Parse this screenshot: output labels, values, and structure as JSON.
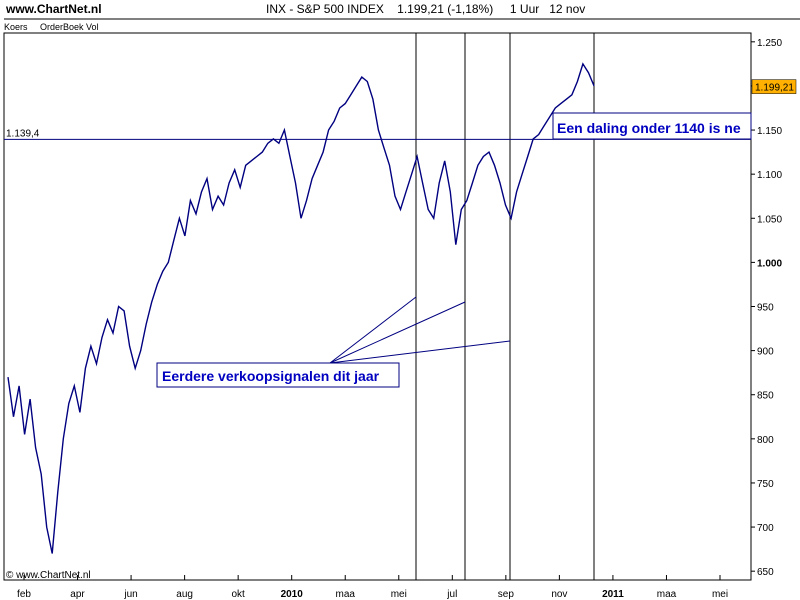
{
  "header": {
    "site": "www.ChartNet.nl",
    "title": "INX - S&P 500 INDEX    1.199,21 (-1,18%)     1 Uur   12 nov"
  },
  "panel": {
    "label1": "Koers",
    "label2": "OrderBoek Vol"
  },
  "copyright": "© www.ChartNet.nl",
  "annotations": {
    "hline_value_label": "1.139,4",
    "last_price_label": "1.199,21",
    "signal_box": "Eerdere verkoopsignalen dit jaar",
    "warning_box": "Een daling onder 1140 is ne"
  },
  "colors": {
    "price_line": "#000080",
    "annotation_text": "#0000c0",
    "price_badge": "#ffb000",
    "grid": "#000000"
  },
  "chart_data": {
    "type": "line",
    "title": "INX - S&P 500 INDEX",
    "ylim": [
      640,
      1260
    ],
    "y_ticks": [
      650,
      700,
      750,
      800,
      850,
      900,
      950,
      1000,
      1050,
      1100,
      1150,
      1200,
      1250
    ],
    "y_tick_labels": [
      "650",
      "700",
      "750",
      "800",
      "850",
      "900",
      "950",
      "1.000",
      "1.050",
      "1.100",
      "1.150",
      "1.200",
      "1.250"
    ],
    "x_ticks": [
      {
        "label": "feb",
        "bold": false
      },
      {
        "label": "apr",
        "bold": false
      },
      {
        "label": "jun",
        "bold": false
      },
      {
        "label": "aug",
        "bold": false
      },
      {
        "label": "okt",
        "bold": false
      },
      {
        "label": "2010",
        "bold": true
      },
      {
        "label": "maa",
        "bold": false
      },
      {
        "label": "mei",
        "bold": false
      },
      {
        "label": "jul",
        "bold": false
      },
      {
        "label": "sep",
        "bold": false
      },
      {
        "label": "nov",
        "bold": false
      },
      {
        "label": "2011",
        "bold": true
      },
      {
        "label": "maa",
        "bold": false
      },
      {
        "label": "mei",
        "bold": false
      }
    ],
    "horizontal_line": 1139.4,
    "last_value": 1199.21,
    "series": [
      {
        "values": [
          870,
          825,
          860,
          805,
          845,
          790,
          760,
          700,
          670,
          740,
          800,
          840,
          860,
          830,
          880,
          905,
          885,
          915,
          935,
          920,
          950,
          945,
          905,
          880,
          900,
          930,
          955,
          975,
          990,
          1000,
          1025,
          1050,
          1030,
          1070,
          1055,
          1080,
          1095,
          1060,
          1075,
          1065,
          1090,
          1105,
          1085,
          1110,
          1115,
          1120,
          1125,
          1135,
          1140,
          1135,
          1150,
          1120,
          1090,
          1050,
          1070,
          1095,
          1110,
          1125,
          1150,
          1160,
          1175,
          1180,
          1190,
          1200,
          1210,
          1205,
          1185,
          1150,
          1130,
          1110,
          1075,
          1060,
          1080,
          1100,
          1120,
          1090,
          1060,
          1050,
          1090,
          1115,
          1080,
          1020,
          1060,
          1070,
          1090,
          1110,
          1120,
          1125,
          1110,
          1090,
          1065,
          1050,
          1080,
          1100,
          1120,
          1140,
          1145,
          1155,
          1165,
          1175,
          1180,
          1185,
          1190,
          1205,
          1225,
          1215,
          1200
        ]
      }
    ]
  }
}
